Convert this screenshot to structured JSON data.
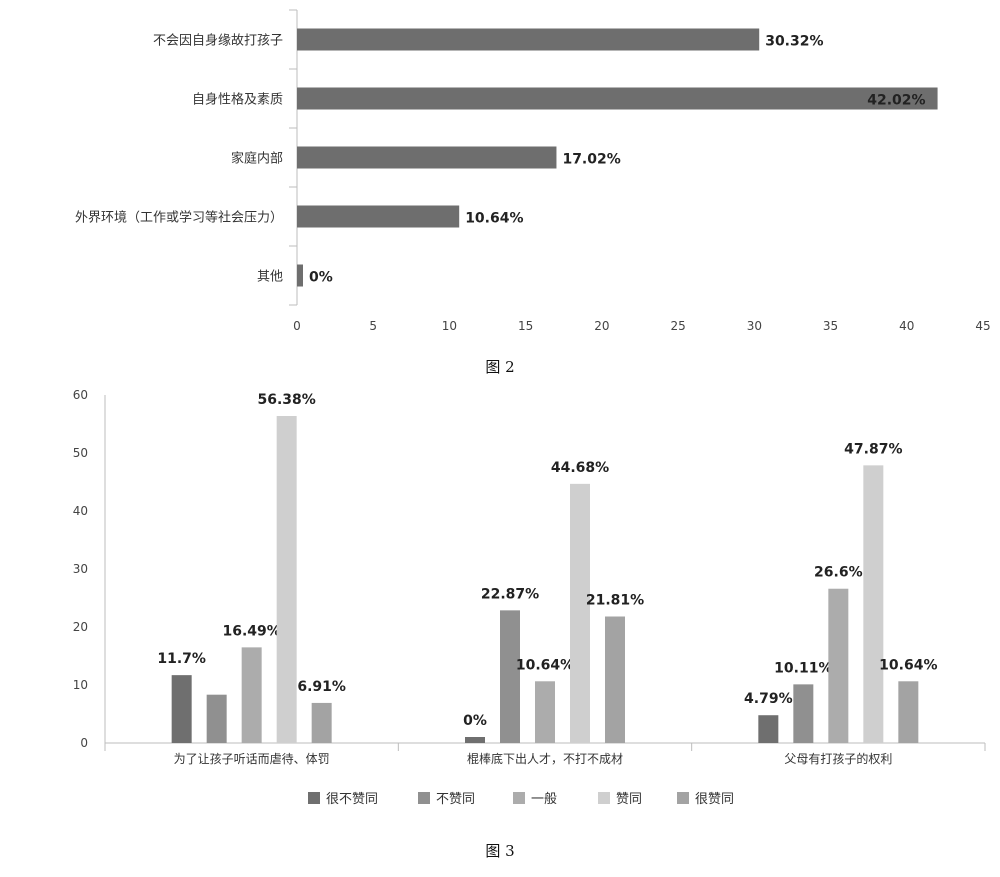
{
  "chart_data": [
    {
      "type": "bar",
      "orientation": "horizontal",
      "categories": [
        "不会因自身缘故打孩子",
        "自身性格及素质",
        "家庭内部",
        "外界环境（工作或学习等社会压力）",
        "其他"
      ],
      "values": [
        30.32,
        42.02,
        17.02,
        10.64,
        0
      ],
      "data_labels": [
        "30.32%",
        "42.02%",
        "17.02%",
        "10.64%",
        "0%"
      ],
      "xlim": [
        0,
        45
      ],
      "xticks": [
        0,
        5,
        10,
        15,
        20,
        25,
        30,
        35,
        40,
        45
      ],
      "bar_color": "#6e6e6e",
      "caption": "图 2"
    },
    {
      "type": "bar",
      "orientation": "vertical",
      "categories": [
        "为了让孩子听话而虐待、体罚",
        "棍棒底下出人才，不打不成材",
        "父母有打孩子的权利"
      ],
      "series": [
        {
          "name": "很不赞同",
          "color": "#6f6f6f",
          "values": [
            11.7,
            0,
            4.79
          ],
          "labels": [
            "11.7%",
            "0%",
            "4.79%"
          ]
        },
        {
          "name": "不赞同",
          "color": "#909090",
          "values": [
            8.33,
            22.87,
            10.11
          ],
          "labels": [
            "",
            "22.87%",
            "10.11%"
          ]
        },
        {
          "name": "一般",
          "color": "#acacac",
          "values": [
            16.49,
            10.64,
            26.6
          ],
          "labels": [
            "16.49%",
            "10.64%",
            "26.6%"
          ]
        },
        {
          "name": "赞同",
          "color": "#cfcfcf",
          "values": [
            56.38,
            44.68,
            47.87
          ],
          "labels": [
            "56.38%",
            "44.68%",
            "47.87%"
          ]
        },
        {
          "name": "很赞同",
          "color": "#a3a3a3",
          "values": [
            6.91,
            21.81,
            10.64
          ],
          "labels": [
            "6.91%",
            "21.81%",
            "10.64%"
          ]
        }
      ],
      "ylim": [
        0,
        60
      ],
      "yticks": [
        0,
        10,
        20,
        30,
        40,
        50,
        60
      ],
      "legend": "bottom",
      "caption": "图 3"
    }
  ]
}
